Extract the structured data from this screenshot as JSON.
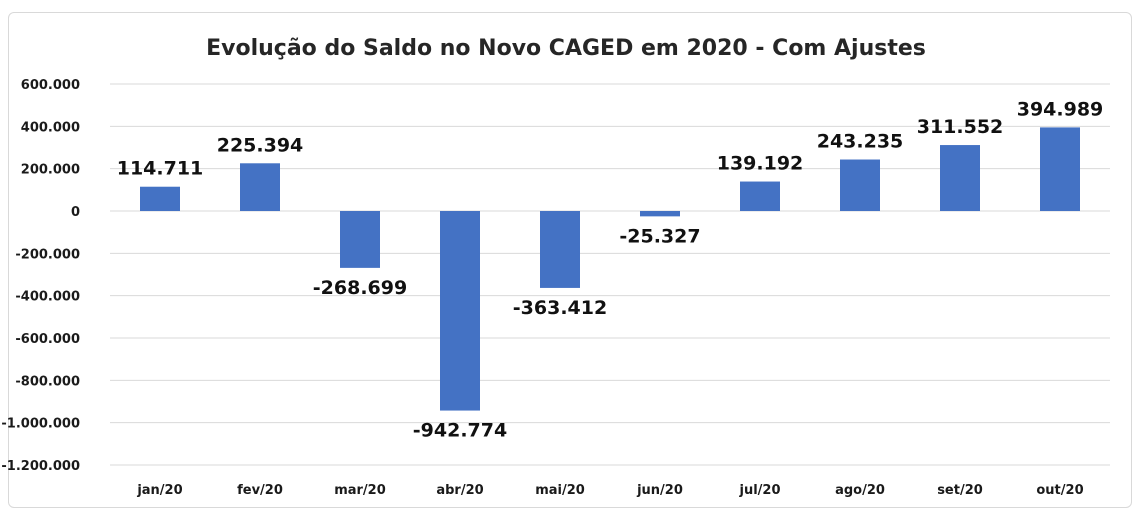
{
  "chart_data": {
    "type": "bar",
    "title": "Evolução do Saldo no Novo CAGED em 2020 - Com Ajustes",
    "xlabel": "",
    "ylabel": "",
    "categories": [
      "jan/20",
      "fev/20",
      "mar/20",
      "abr/20",
      "mai/20",
      "jun/20",
      "jul/20",
      "ago/20",
      "set/20",
      "out/20"
    ],
    "values": [
      114711,
      225394,
      -268699,
      -942774,
      -363412,
      -25327,
      139192,
      243235,
      311552,
      394989
    ],
    "value_labels": [
      "114.711",
      "225.394",
      "-268.699",
      "-942.774",
      "-363.412",
      "-25.327",
      "139.192",
      "243.235",
      "311.552",
      "394.989"
    ],
    "ylim": [
      -1200000,
      600000
    ],
    "yticks": [
      600000,
      400000,
      200000,
      0,
      -200000,
      -400000,
      -600000,
      -800000,
      -1000000,
      -1200000
    ],
    "ytick_labels": [
      "600.000",
      "400.000",
      "200.000",
      "0",
      "-200.000",
      "-400.000",
      "-600.000",
      "-800.000",
      "-1.000.000",
      "-1.200.000"
    ],
    "grid": true,
    "legend": "none",
    "colors": {
      "bar": "#4472C4",
      "grid": "#d9d9d9"
    }
  }
}
